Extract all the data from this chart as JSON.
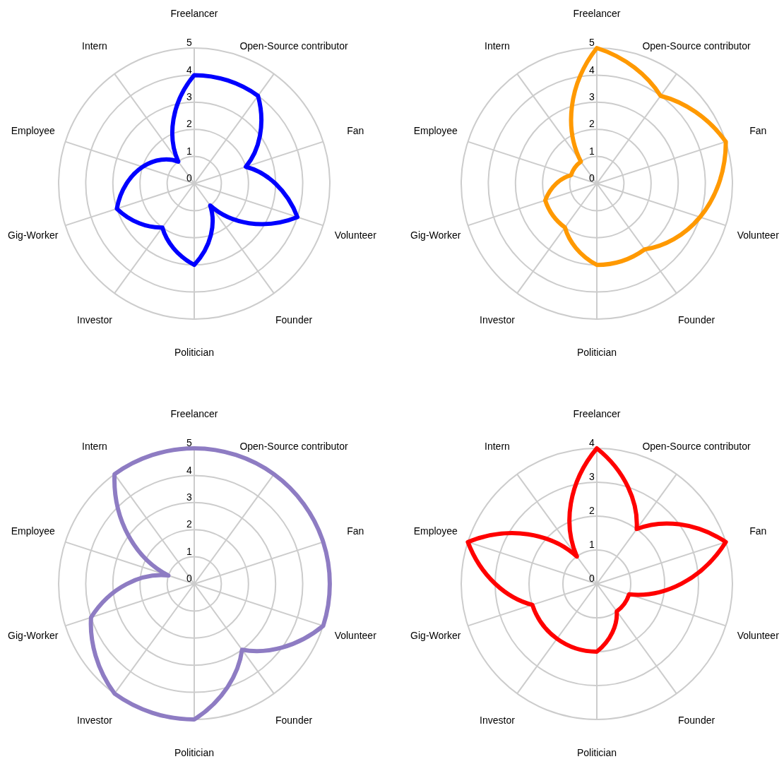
{
  "chart_data": [
    {
      "type": "radar",
      "categories": [
        "Freelancer",
        "Open-Source contributor",
        "Fan",
        "Volunteer",
        "Founder",
        "Politician",
        "Investor",
        "Gig-Worker",
        "Employee",
        "Intern"
      ],
      "ylim": [
        0,
        5
      ],
      "yticks": [
        0,
        1,
        2,
        3,
        4,
        5
      ],
      "grid": true,
      "series": [
        {
          "color": "#0000ff",
          "values": [
            4,
            4,
            2,
            4,
            1,
            3,
            2,
            3,
            2,
            1
          ]
        }
      ]
    },
    {
      "type": "radar",
      "categories": [
        "Freelancer",
        "Open-Source contributor",
        "Fan",
        "Volunteer",
        "Founder",
        "Politician",
        "Investor",
        "Gig-Worker",
        "Employee",
        "Intern"
      ],
      "ylim": [
        0,
        5
      ],
      "yticks": [
        0,
        1,
        2,
        3,
        4,
        5
      ],
      "grid": true,
      "series": [
        {
          "color": "#ff9900",
          "values": [
            5,
            4,
            5,
            4,
            3,
            3,
            2,
            2,
            1,
            1
          ]
        }
      ]
    },
    {
      "type": "radar",
      "categories": [
        "Freelancer",
        "Open-Source contributor",
        "Fan",
        "Volunteer",
        "Founder",
        "Politician",
        "Investor",
        "Gig-Worker",
        "Employee",
        "Intern"
      ],
      "ylim": [
        0,
        5
      ],
      "yticks": [
        0,
        1,
        2,
        3,
        4,
        5
      ],
      "grid": true,
      "series": [
        {
          "color": "#8e7cc3",
          "values": [
            5,
            5,
            5,
            5,
            3,
            5,
            5,
            4,
            1,
            5
          ]
        }
      ]
    },
    {
      "type": "radar",
      "categories": [
        "Freelancer",
        "Open-Source contributor",
        "Fan",
        "Volunteer",
        "Founder",
        "Politician",
        "Investor",
        "Gig-Worker",
        "Employee",
        "Intern"
      ],
      "ylim": [
        0,
        4
      ],
      "yticks": [
        0,
        1,
        2,
        3,
        4
      ],
      "grid": true,
      "series": [
        {
          "color": "#ff0000",
          "values": [
            4,
            2,
            4,
            1,
            1,
            2,
            2,
            2,
            4,
            1
          ]
        }
      ]
    }
  ]
}
